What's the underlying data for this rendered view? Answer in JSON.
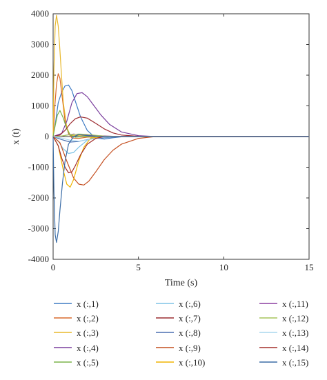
{
  "chart_data": {
    "type": "line",
    "title": "",
    "xlabel": "Time (s)",
    "ylabel": "x (t)",
    "xlim": [
      0,
      15
    ],
    "ylim": [
      -4000,
      4000
    ],
    "xticks": [
      0,
      5,
      10,
      15
    ],
    "yticks": [
      4000,
      3000,
      2000,
      1000,
      0,
      -1000,
      -2000,
      -3000,
      -4000
    ],
    "grid": false,
    "legend_position": "bottom",
    "series": [
      {
        "name": "x (:,1)",
        "color": "#3e7bc4",
        "x": [
          0,
          0.15,
          0.3,
          0.5,
          0.7,
          0.9,
          1.1,
          1.3,
          1.6,
          2.0,
          2.5,
          3,
          3.5,
          4,
          5,
          6,
          7,
          15
        ],
        "y": [
          0,
          500,
          1100,
          1450,
          1650,
          1680,
          1500,
          1150,
          650,
          200,
          -50,
          -80,
          -40,
          -10,
          0,
          0,
          0,
          0
        ]
      },
      {
        "name": "x (:,2)",
        "color": "#d96a2b",
        "x": [
          0,
          0.1,
          0.2,
          0.3,
          0.4,
          0.55,
          0.7,
          0.9,
          1.1,
          1.5,
          2,
          3,
          4,
          5,
          15
        ],
        "y": [
          0,
          1000,
          1700,
          2050,
          1900,
          1200,
          500,
          100,
          -50,
          -60,
          -20,
          0,
          0,
          0,
          0
        ]
      },
      {
        "name": "x (:,3)",
        "color": "#e8b82c",
        "x": [
          0,
          0.05,
          0.12,
          0.2,
          0.3,
          0.4,
          0.5,
          0.6,
          0.8,
          1.0,
          1.3,
          1.6,
          2,
          3,
          4,
          5,
          15
        ],
        "y": [
          0,
          2200,
          3600,
          3950,
          3600,
          2800,
          1900,
          1100,
          300,
          50,
          30,
          40,
          20,
          0,
          0,
          0,
          0
        ]
      },
      {
        "name": "x (:,4)",
        "color": "#7a3e9d",
        "x": [
          0,
          0.5,
          0.8,
          1.1,
          1.4,
          1.7,
          2.0,
          2.4,
          2.8,
          3.3,
          4,
          5,
          6,
          7,
          15
        ],
        "y": [
          0,
          100,
          500,
          1100,
          1400,
          1430,
          1300,
          1000,
          700,
          400,
          150,
          30,
          0,
          0,
          0
        ]
      },
      {
        "name": "x (:,5)",
        "color": "#7ab34a",
        "x": [
          0,
          0.1,
          0.25,
          0.4,
          0.6,
          0.8,
          1.0,
          1.3,
          2,
          3,
          15
        ],
        "y": [
          0,
          300,
          700,
          850,
          600,
          250,
          50,
          -20,
          0,
          0,
          0
        ]
      },
      {
        "name": "x (:,6)",
        "color": "#7ec4e6",
        "x": [
          0,
          0.3,
          0.6,
          0.9,
          1.2,
          1.5,
          2,
          2.5,
          3,
          4,
          15
        ],
        "y": [
          0,
          -150,
          -400,
          -550,
          -520,
          -350,
          -120,
          -20,
          0,
          0,
          0
        ]
      },
      {
        "name": "x (:,7)",
        "color": "#9c2b30",
        "x": [
          0,
          0.4,
          0.7,
          1.0,
          1.3,
          1.6,
          2.0,
          2.5,
          3,
          3.5,
          4,
          5,
          6,
          15
        ],
        "y": [
          0,
          50,
          200,
          420,
          580,
          640,
          600,
          430,
          250,
          120,
          50,
          10,
          0,
          0
        ]
      },
      {
        "name": "x (:,8)",
        "color": "#4a6fb0",
        "x": [
          0,
          0.5,
          1.0,
          1.5,
          2,
          2.5,
          3,
          3.5,
          4,
          5,
          15
        ],
        "y": [
          0,
          -100,
          -180,
          -160,
          -100,
          -60,
          -40,
          -20,
          -5,
          0,
          0
        ]
      },
      {
        "name": "x (:,9)",
        "color": "#c44e1f",
        "x": [
          0,
          0.4,
          0.8,
          1.2,
          1.5,
          1.8,
          2.1,
          2.5,
          3,
          3.5,
          4,
          5,
          6,
          15
        ],
        "y": [
          0,
          -200,
          -800,
          -1350,
          -1550,
          -1580,
          -1450,
          -1150,
          -750,
          -450,
          -250,
          -60,
          0,
          0
        ]
      },
      {
        "name": "x (:,10)",
        "color": "#f0b400",
        "x": [
          0,
          0.3,
          0.6,
          0.8,
          1.0,
          1.2,
          1.5,
          1.8,
          2.2,
          3,
          4,
          15
        ],
        "y": [
          0,
          -300,
          -1100,
          -1550,
          -1650,
          -1400,
          -800,
          -350,
          -50,
          0,
          0,
          0
        ]
      },
      {
        "name": "x (:,11)",
        "color": "#8b3fa0",
        "x": [
          0,
          0.4,
          0.8,
          1.2,
          1.6,
          2,
          2.5,
          3,
          3.5,
          4,
          5,
          6,
          15
        ],
        "y": [
          0,
          0,
          50,
          80,
          60,
          40,
          30,
          20,
          10,
          5,
          0,
          0,
          0
        ]
      },
      {
        "name": "x (:,12)",
        "color": "#a6c35a",
        "x": [
          0,
          0.5,
          1.0,
          1.5,
          2,
          2.5,
          3,
          4,
          5,
          15
        ],
        "y": [
          0,
          20,
          60,
          80,
          70,
          40,
          15,
          0,
          0,
          0
        ]
      },
      {
        "name": "x (:,13)",
        "color": "#a9d7ee",
        "x": [
          0,
          0.5,
          1.0,
          1.5,
          2,
          2.5,
          3,
          4,
          15
        ],
        "y": [
          0,
          -50,
          -120,
          -150,
          -110,
          -60,
          -20,
          0,
          0
        ]
      },
      {
        "name": "x (:,14)",
        "color": "#a32e2a",
        "x": [
          0,
          0.3,
          0.5,
          0.7,
          0.9,
          1.1,
          1.3,
          1.6,
          2,
          2.5,
          3,
          4,
          15
        ],
        "y": [
          0,
          -300,
          -700,
          -1000,
          -1180,
          -1150,
          -950,
          -600,
          -250,
          -60,
          0,
          0,
          0
        ]
      },
      {
        "name": "x (:,15)",
        "color": "#3a6ca6",
        "x": [
          0,
          0.05,
          0.12,
          0.2,
          0.3,
          0.4,
          0.55,
          0.7,
          0.9,
          1.2,
          1.5,
          2,
          3,
          15
        ],
        "y": [
          0,
          -1800,
          -3200,
          -3450,
          -3100,
          -2400,
          -1500,
          -800,
          -250,
          0,
          60,
          30,
          0,
          0
        ]
      }
    ]
  }
}
